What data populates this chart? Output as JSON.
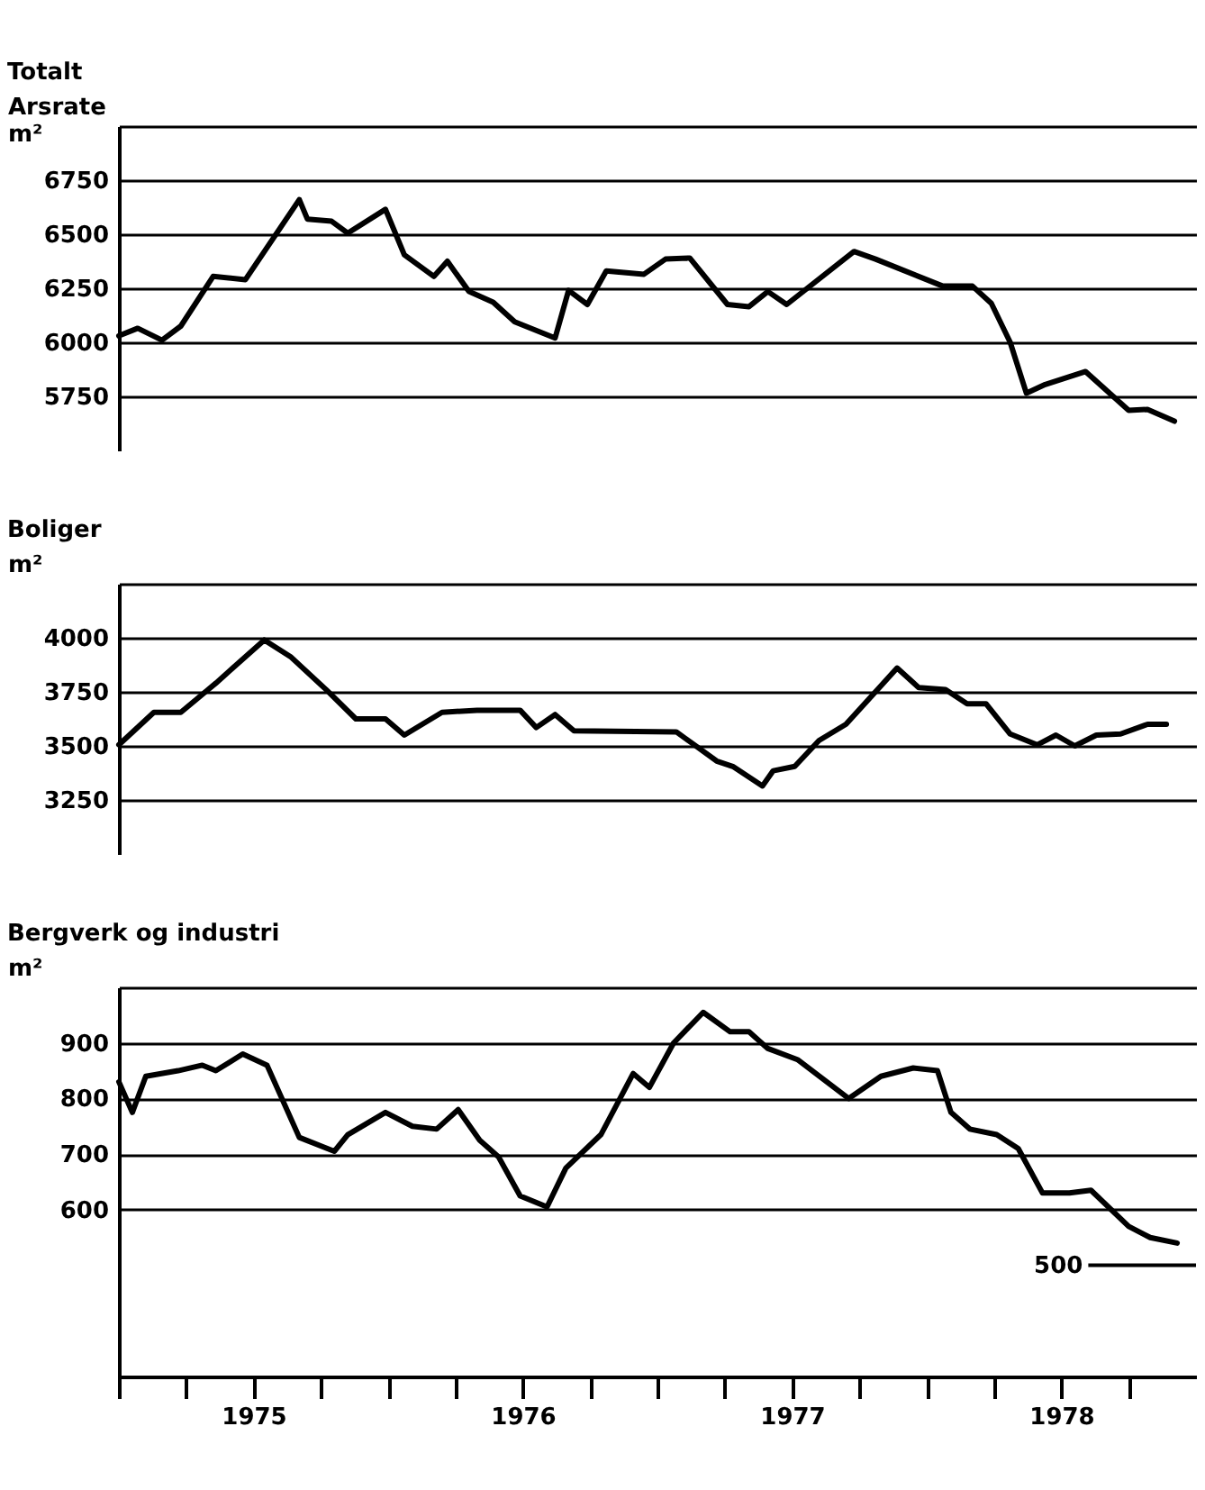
{
  "chart_data": [
    {
      "type": "line",
      "title": "Totalt",
      "ylabel": "Arsrate m²",
      "xlim": [
        1975,
        1979
      ],
      "ylim": [
        5500,
        7000
      ],
      "yticks": [
        5750,
        6000,
        6250,
        6500,
        6750,
        {
          "value": 7000,
          "label": null
        }
      ],
      "grid": "y",
      "tick_labels": "y",
      "series": [
        {
          "color": "#000000",
          "x": [
            1975.0,
            1975.07,
            1975.16,
            1975.23,
            1975.35,
            1975.47,
            1975.67,
            1975.7,
            1975.79,
            1975.85,
            1975.99,
            1976.06,
            1976.17,
            1976.22,
            1976.3,
            1976.39,
            1976.47,
            1976.62,
            1976.67,
            1976.74,
            1976.81,
            1976.95,
            1977.03,
            1977.12,
            1977.26,
            1977.34,
            1977.41,
            1977.48,
            1977.73,
            1977.81,
            1978.06,
            1978.17,
            1978.24,
            1978.31,
            1978.37,
            1978.44,
            1978.59,
            1978.75,
            1978.82,
            1978.92
          ],
          "values": [
            6030,
            6065,
            6010,
            6075,
            6305,
            6290,
            6660,
            6570,
            6560,
            6505,
            6615,
            6405,
            6305,
            6375,
            6235,
            6185,
            6095,
            6020,
            6240,
            6175,
            6330,
            6315,
            6385,
            6390,
            6175,
            6165,
            6235,
            6175,
            6420,
            6385,
            6260,
            6260,
            6180,
            6000,
            5765,
            5805,
            5865,
            5685,
            5690,
            5635
          ]
        }
      ]
    },
    {
      "type": "line",
      "title": "Boliger",
      "ylabel": "m²",
      "xlim": [
        1975,
        1979
      ],
      "ylim": [
        3000,
        4250
      ],
      "yticks": [
        3250,
        3500,
        3750,
        4000,
        {
          "value": 4250,
          "label": null
        }
      ],
      "grid": "y",
      "tick_labels": "y",
      "series": [
        {
          "color": "#000000",
          "x": [
            1975.0,
            1975.13,
            1975.23,
            1975.36,
            1975.54,
            1975.64,
            1975.77,
            1975.88,
            1975.99,
            1976.06,
            1976.2,
            1976.33,
            1976.49,
            1976.55,
            1976.62,
            1976.69,
            1977.07,
            1977.22,
            1977.28,
            1977.39,
            1977.43,
            1977.51,
            1977.6,
            1977.7,
            1977.89,
            1977.97,
            1978.07,
            1978.15,
            1978.22,
            1978.31,
            1978.41,
            1978.48,
            1978.55,
            1978.63,
            1978.72,
            1978.82,
            1978.89
          ],
          "values": [
            3505,
            3655,
            3655,
            3790,
            3990,
            3910,
            3760,
            3625,
            3625,
            3550,
            3655,
            3665,
            3665,
            3585,
            3645,
            3570,
            3565,
            3430,
            3405,
            3315,
            3385,
            3405,
            3525,
            3600,
            3860,
            3770,
            3760,
            3695,
            3695,
            3555,
            3505,
            3550,
            3500,
            3550,
            3555,
            3600,
            3600
          ]
        }
      ]
    },
    {
      "type": "line",
      "title": "Bergverk og industri",
      "ylabel": "m²",
      "xlim": [
        1975,
        1979
      ],
      "ylim": [
        300,
        1000
      ],
      "yticks": [
        600,
        700,
        800,
        900,
        {
          "value": 1000,
          "label": null
        }
      ],
      "grid": "y",
      "xticks": [
        {
          "value": 1975,
          "label": null
        },
        {
          "value": 1975.25,
          "label": null
        },
        {
          "value": 1975.5,
          "label": "1975"
        },
        {
          "value": 1975.75,
          "label": null
        },
        {
          "value": 1976,
          "label": null
        },
        {
          "value": 1976.25,
          "label": null
        },
        {
          "value": 1976.5,
          "label": "1976"
        },
        {
          "value": 1976.75,
          "label": null
        },
        {
          "value": 1977,
          "label": null
        },
        {
          "value": 1977.25,
          "label": null
        },
        {
          "value": 1977.5,
          "label": "1977"
        },
        {
          "value": 1977.75,
          "label": null
        },
        {
          "value": 1978,
          "label": null
        },
        {
          "value": 1978.25,
          "label": null
        },
        {
          "value": 1978.5,
          "label": "1978"
        },
        {
          "value": 1978.75,
          "label": null
        }
      ],
      "ref_lines": [
        {
          "axis": "y",
          "value": 500,
          "label": "500"
        }
      ],
      "series": [
        {
          "color": "#000000",
          "x": [
            1975.0,
            1975.05,
            1975.1,
            1975.22,
            1975.31,
            1975.36,
            1975.46,
            1975.55,
            1975.67,
            1975.8,
            1975.85,
            1975.99,
            1976.09,
            1976.18,
            1976.26,
            1976.34,
            1976.41,
            1976.49,
            1976.59,
            1976.66,
            1976.79,
            1976.91,
            1976.97,
            1977.06,
            1977.17,
            1977.27,
            1977.34,
            1977.41,
            1977.52,
            1977.71,
            1977.83,
            1977.95,
            1978.04,
            1978.09,
            1978.16,
            1978.26,
            1978.34,
            1978.43,
            1978.53,
            1978.61,
            1978.75,
            1978.83,
            1978.93
          ],
          "values": [
            830,
            775,
            840,
            850,
            860,
            850,
            880,
            860,
            730,
            705,
            735,
            775,
            750,
            745,
            780,
            725,
            695,
            625,
            605,
            675,
            735,
            845,
            820,
            900,
            955,
            920,
            920,
            890,
            870,
            800,
            840,
            855,
            850,
            775,
            745,
            735,
            710,
            630,
            630,
            635,
            570,
            550,
            540
          ]
        }
      ]
    }
  ]
}
